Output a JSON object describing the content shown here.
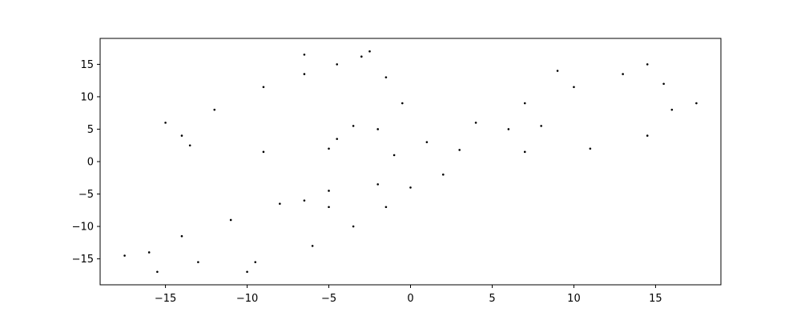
{
  "chart_data": {
    "type": "scatter",
    "title": "",
    "xlabel": "",
    "ylabel": "",
    "xlim": [
      -19,
      19
    ],
    "ylim": [
      -19,
      19
    ],
    "xticks": [
      -15,
      -10,
      -5,
      0,
      5,
      10,
      15
    ],
    "yticks": [
      -15,
      -10,
      -5,
      0,
      5,
      10,
      15
    ],
    "xtick_labels": [
      "−15",
      "−10",
      "−5",
      "0",
      "5",
      "10",
      "15"
    ],
    "ytick_labels": [
      "−15",
      "−10",
      "−5",
      "0",
      "5",
      "10",
      "15"
    ],
    "grid": false,
    "marker_color": "#000000",
    "series": [
      {
        "values": [
          [
            -14.0,
            4.0
          ],
          [
            -12.0,
            8.0
          ],
          [
            -9.0,
            11.5
          ],
          [
            -6.5,
            13.5
          ],
          [
            -4.5,
            15.0
          ],
          [
            -3.0,
            16.2
          ],
          [
            -1.5,
            13.0
          ],
          [
            -0.5,
            9.0
          ],
          [
            -2.0,
            5.0
          ],
          [
            -5.0,
            2.0
          ],
          [
            -9.0,
            1.5
          ],
          [
            -13.5,
            2.5
          ],
          [
            -4.5,
            3.5
          ],
          [
            -3.5,
            5.5
          ],
          [
            -16.0,
            -14.0
          ],
          [
            -14.0,
            -11.5
          ],
          [
            -11.0,
            -9.0
          ],
          [
            -8.0,
            -6.5
          ],
          [
            -5.0,
            -4.5
          ],
          [
            -2.0,
            -3.5
          ],
          [
            0.0,
            -4.0
          ],
          [
            -1.5,
            -7.0
          ],
          [
            -3.5,
            -10.0
          ],
          [
            -6.0,
            -13.0
          ],
          [
            -9.5,
            -15.5
          ],
          [
            -13.0,
            -15.5
          ],
          [
            -5.0,
            -7.0
          ],
          [
            -6.5,
            -6.0
          ],
          [
            1.0,
            3.0
          ],
          [
            4.0,
            6.0
          ],
          [
            7.0,
            9.0
          ],
          [
            10.0,
            11.5
          ],
          [
            13.0,
            13.5
          ],
          [
            15.5,
            12.0
          ],
          [
            16.0,
            8.0
          ],
          [
            14.5,
            4.0
          ],
          [
            11.0,
            2.0
          ],
          [
            7.0,
            1.5
          ],
          [
            3.0,
            1.8
          ],
          [
            8.0,
            5.5
          ],
          [
            6.0,
            5.0
          ],
          [
            -17.5,
            -14.5
          ],
          [
            -15.5,
            -17.0
          ],
          [
            -10.0,
            -17.0
          ],
          [
            -6.5,
            16.5
          ],
          [
            -2.5,
            17.0
          ],
          [
            17.5,
            9.0
          ],
          [
            14.5,
            15.0
          ],
          [
            9.0,
            14.0
          ],
          [
            -15.0,
            6.0
          ],
          [
            2.0,
            -2.0
          ],
          [
            -1.0,
            1.0
          ]
        ]
      }
    ]
  }
}
